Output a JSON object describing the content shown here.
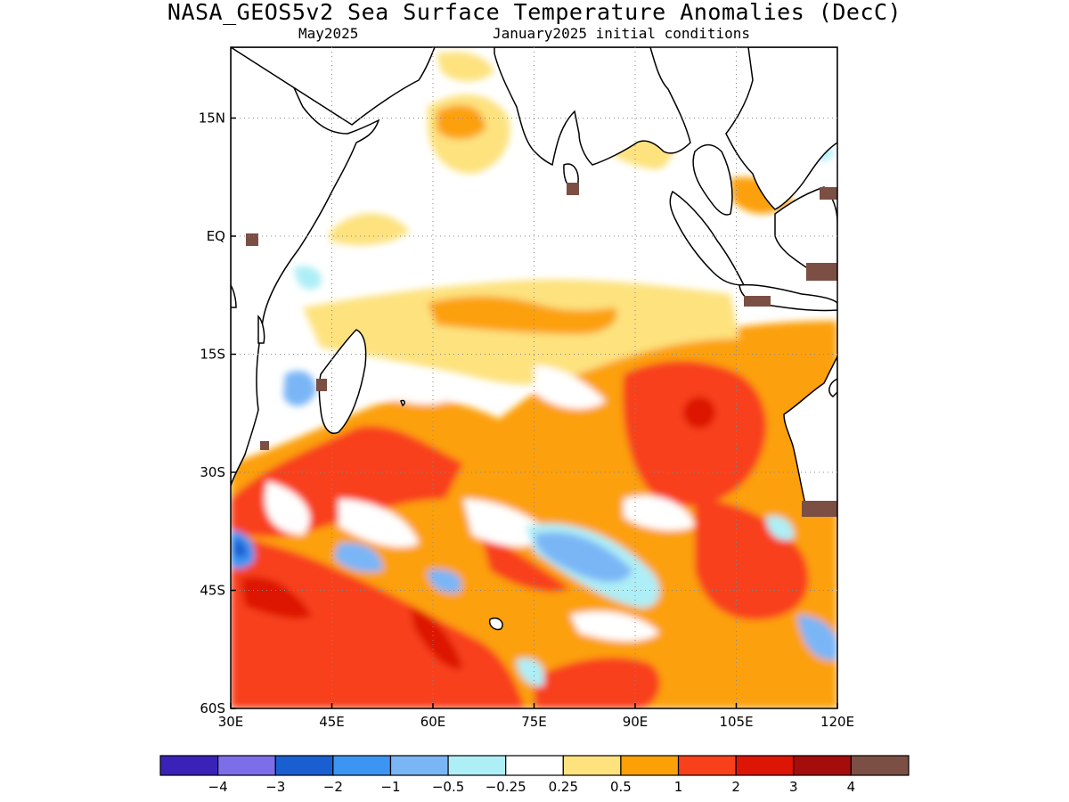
{
  "title": "NASA_GEOS5v2 Sea Surface Temperature Anomalies (DecC)",
  "subtitle_left": "May2025",
  "subtitle_right": "January2025 initial conditions",
  "map": {
    "lon_range": [
      30,
      120
    ],
    "lat_range": [
      -60,
      24
    ],
    "lon_ticks": [
      {
        "value": 30,
        "label": "30E"
      },
      {
        "value": 45,
        "label": "45E"
      },
      {
        "value": 60,
        "label": "60E"
      },
      {
        "value": 75,
        "label": "75E"
      },
      {
        "value": 90,
        "label": "90E"
      },
      {
        "value": 105,
        "label": "105E"
      },
      {
        "value": 120,
        "label": "120E"
      }
    ],
    "lat_ticks": [
      {
        "value": 15,
        "label": "15N"
      },
      {
        "value": 0,
        "label": "EQ"
      },
      {
        "value": -15,
        "label": "15S"
      },
      {
        "value": -30,
        "label": "30S"
      },
      {
        "value": -45,
        "label": "45S"
      },
      {
        "value": -60,
        "label": "60S"
      }
    ],
    "grid": "dotted"
  },
  "colorbar": {
    "colors": [
      "#3a22b8",
      "#7b6ee8",
      "#1a5fd1",
      "#3c95f2",
      "#7ab6f6",
      "#aeeef6",
      "#ffffff",
      "#fde27e",
      "#fca007",
      "#f8401a",
      "#dc1505",
      "#a50c0c",
      "#7b4f44"
    ],
    "labels": [
      "−4",
      "−3",
      "−2",
      "−1",
      "−0.5",
      "−0.25",
      "0.25",
      "0.5",
      "1",
      "2",
      "3",
      "4"
    ]
  }
}
